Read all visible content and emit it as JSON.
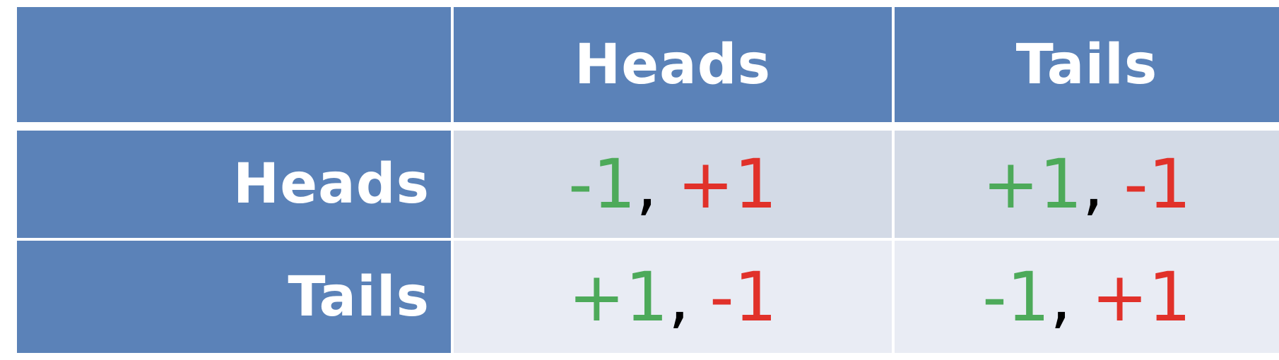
{
  "colors": {
    "header_bg": "#5b82b8",
    "row1_bg": "#d3dae6",
    "row2_bg": "#e9ecf4",
    "green": "#4daa5a",
    "red": "#e1312a",
    "header_text": "#ffffff",
    "separator": "#000000"
  },
  "table": {
    "column_headers": [
      "",
      "Heads",
      "Tails"
    ],
    "rows": [
      {
        "label": "Heads",
        "cells": [
          {
            "first": "-1",
            "separator": ",",
            "second": "+1"
          },
          {
            "first": "+1",
            "separator": ",",
            "second": "-1"
          }
        ]
      },
      {
        "label": "Tails",
        "cells": [
          {
            "first": "+1",
            "separator": ",",
            "second": "-1"
          },
          {
            "first": "-1",
            "separator": ",",
            "second": "+1"
          }
        ]
      }
    ]
  }
}
